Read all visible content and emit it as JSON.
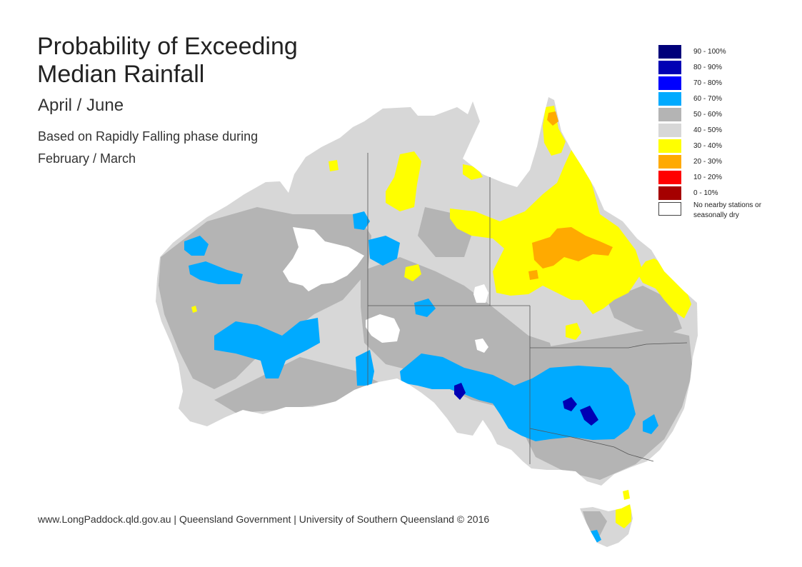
{
  "title": "Probability of Exceeding Median Rainfall",
  "period": "April / June",
  "description": "Based on Rapidly Falling phase during February / March",
  "footer": "www.LongPaddock.qld.gov.au | Queensland Government | University of Southern Queensland © 2016",
  "legend": [
    {
      "label": "90 - 100%",
      "color": "#00007a"
    },
    {
      "label": "80 - 90%",
      "color": "#0000b4"
    },
    {
      "label": "70 - 80%",
      "color": "#0000ff"
    },
    {
      "label": "60 - 70%",
      "color": "#00aaff"
    },
    {
      "label": "50 - 60%",
      "color": "#b4b4b4"
    },
    {
      "label": "40 - 50%",
      "color": "#d7d7d7"
    },
    {
      "label": "30 - 40%",
      "color": "#ffff00"
    },
    {
      "label": "20 - 30%",
      "color": "#ffaa00"
    },
    {
      "label": "10 - 20%",
      "color": "#ff0000"
    },
    {
      "label": "0 - 10%",
      "color": "#a50000"
    },
    {
      "label": "No nearby stations or seasonally dry",
      "color": "#ffffff"
    }
  ],
  "colors": {
    "land_base": "#d7d7d7",
    "band_50_60": "#b4b4b4",
    "band_60_70": "#00aaff",
    "band_70_80": "#0000ff",
    "band_80_90": "#0000b4",
    "band_30_40": "#ffff00",
    "band_20_30": "#ffaa00",
    "no_data": "#ffffff",
    "state_border": "#555555"
  }
}
